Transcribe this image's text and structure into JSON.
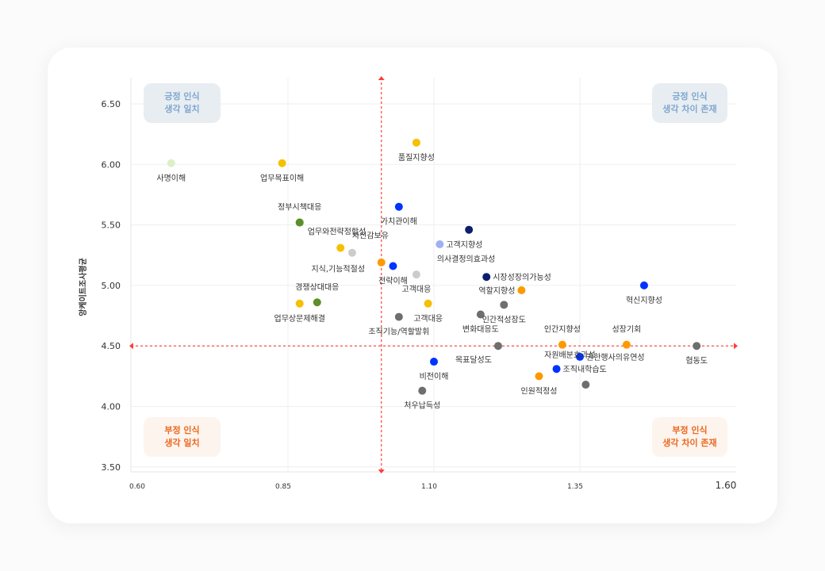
{
  "chart_data": {
    "type": "scatter",
    "title": "",
    "xlabel": "",
    "ylabel": "앙케이트조사평균",
    "xlim": [
      0.6,
      1.6
    ],
    "ylim": [
      3.5,
      6.5
    ],
    "x_ticks": [
      "0.60",
      "0.85",
      "1.10",
      "1.35",
      "1.60"
    ],
    "y_ticks": [
      "6.50",
      "6.00",
      "5.50",
      "5.00",
      "4.50",
      "4.00",
      "3.50"
    ],
    "grid": true,
    "reference_lines": {
      "x": 1.01,
      "y": 4.5,
      "color": "#ff3b3b"
    },
    "quadrants": [
      {
        "line1": "긍정 인식",
        "line2": "생각 일치",
        "position": "top-left",
        "tone": "positive"
      },
      {
        "line1": "긍정 인식",
        "line2": "생각 차이 존재",
        "position": "top-right",
        "tone": "positive"
      },
      {
        "line1": "부정 인식",
        "line2": "생각 일치",
        "position": "bottom-left",
        "tone": "negative"
      },
      {
        "line1": "부정 인식",
        "line2": "생각 차이 존재",
        "position": "bottom-right",
        "tone": "negative"
      }
    ],
    "points": [
      {
        "label": "사명이해",
        "x": 0.65,
        "y": 6.01,
        "color": "#dcefc6",
        "lp": "b"
      },
      {
        "label": "업무목표이해",
        "x": 0.84,
        "y": 6.01,
        "color": "#f5c000",
        "lp": "b"
      },
      {
        "label": "품질지향성",
        "x": 1.07,
        "y": 6.18,
        "color": "#f5c000",
        "lp": "b"
      },
      {
        "label": "정부시책대응",
        "x": 0.87,
        "y": 5.52,
        "color": "#5a8f2a",
        "lp": "a"
      },
      {
        "label": "업무와전략정합성",
        "x": 0.87,
        "y": 5.52,
        "color": "#5a8f2a",
        "lp": "br"
      },
      {
        "label": "가치관이해",
        "x": 1.04,
        "y": 5.65,
        "color": "#0033ff",
        "lp": "b"
      },
      {
        "label": "",
        "x": 1.16,
        "y": 5.46,
        "color": "#0d1f6b",
        "lp": "b"
      },
      {
        "label": "고객지향성",
        "x": 1.11,
        "y": 5.34,
        "color": "#9fb0f0",
        "lp": "r"
      },
      {
        "label": "지식,기능적절성",
        "x": 0.94,
        "y": 5.31,
        "color": "#f5c000",
        "lp": "bl2"
      },
      {
        "label": "자신감보유",
        "x": 0.96,
        "y": 5.27,
        "color": "#cccccc",
        "lp": "ar"
      },
      {
        "label": "의사결정의효과성",
        "x": 1.01,
        "y": 5.19,
        "color": "#ff9900",
        "lp": "ar2"
      },
      {
        "label": "전략이해",
        "x": 1.03,
        "y": 5.16,
        "color": "#0033ff",
        "lp": "b"
      },
      {
        "label": "고객대응",
        "x": 1.07,
        "y": 5.09,
        "color": "#cccccc",
        "lp": "b"
      },
      {
        "label": "시장성장의가능성",
        "x": 1.19,
        "y": 5.07,
        "color": "#0d1f6b",
        "lp": "r"
      },
      {
        "label": "혁신지향성",
        "x": 1.46,
        "y": 5.0,
        "color": "#0033ff",
        "lp": "b"
      },
      {
        "label": "역할지향성",
        "x": 1.25,
        "y": 4.96,
        "color": "#ff9900",
        "lp": "l"
      },
      {
        "label": "경쟁상대대응",
        "x": 0.9,
        "y": 4.86,
        "color": "#5a8f2a",
        "lp": "a"
      },
      {
        "label": "업무상문제해결",
        "x": 0.87,
        "y": 4.85,
        "color": "#f5c000",
        "lp": "b"
      },
      {
        "label": "고객대응",
        "x": 1.09,
        "y": 4.85,
        "color": "#f5c000",
        "lp": "b"
      },
      {
        "label": "조직기능/역할발휘",
        "x": 1.04,
        "y": 4.74,
        "color": "#6e6e6e",
        "lp": "b"
      },
      {
        "label": "변화대응도",
        "x": 1.18,
        "y": 4.76,
        "color": "#6e6e6e",
        "lp": "b"
      },
      {
        "label": "인간적성장도",
        "x": 1.22,
        "y": 4.84,
        "color": "#6e6e6e",
        "lp": "b"
      },
      {
        "label": "인간지향성",
        "x": 1.32,
        "y": 4.51,
        "color": "#ff9900",
        "lp": "a"
      },
      {
        "label": "성장기회",
        "x": 1.43,
        "y": 4.51,
        "color": "#ff9900",
        "lp": "a"
      },
      {
        "label": "협동도",
        "x": 1.55,
        "y": 4.5,
        "color": "#6e6e6e",
        "lp": "b"
      },
      {
        "label": "목표달성도",
        "x": 1.21,
        "y": 4.5,
        "color": "#6e6e6e",
        "lp": "bl"
      },
      {
        "label": "권한행사의유연성",
        "x": 1.35,
        "y": 4.41,
        "color": "#0033ff",
        "lp": "r"
      },
      {
        "label": "조직내학습도",
        "x": 1.31,
        "y": 4.31,
        "color": "#0033ff",
        "lp": "r"
      },
      {
        "label": "인원적정성",
        "x": 1.28,
        "y": 4.25,
        "color": "#ff9900",
        "lp": "b"
      },
      {
        "label": "자원배분효과성",
        "x": 1.36,
        "y": 4.18,
        "color": "#6e6e6e",
        "lp": "al"
      },
      {
        "label": "비전이해",
        "x": 1.1,
        "y": 4.37,
        "color": "#0033ff",
        "lp": "b"
      },
      {
        "label": "처우납득성",
        "x": 1.08,
        "y": 4.13,
        "color": "#6e6e6e",
        "lp": "b"
      }
    ]
  }
}
